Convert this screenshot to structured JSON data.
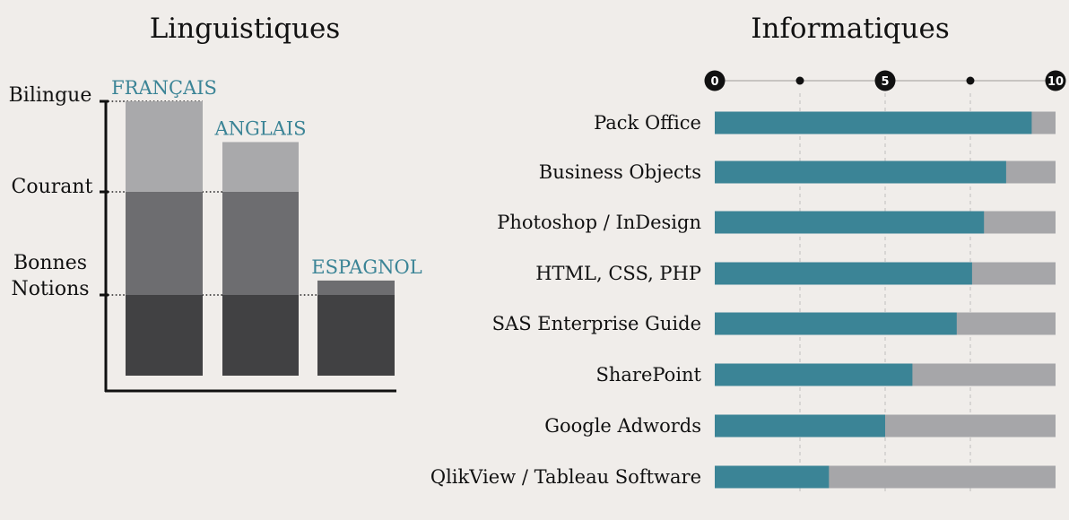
{
  "colors": {
    "background": "#f0edea",
    "lang_top": "#a9a9ab",
    "lang_mid": "#6d6d70",
    "lang_base": "#414143",
    "skill_fill": "#3b8496",
    "skill_track": "#a6a6a9",
    "accent_text": "#3b8496",
    "ink": "#111111"
  },
  "chart_data": [
    {
      "type": "bar",
      "title": "Linguistiques",
      "levels": [
        "Bonnes Notions",
        "Courant",
        "Bilingue"
      ],
      "level_labels": [
        {
          "lines": [
            "Bonnes",
            "Notions"
          ]
        },
        {
          "lines": [
            "Courant"
          ]
        },
        {
          "lines": [
            "Bilingue"
          ]
        }
      ],
      "categories": [
        "FRANÇAIS",
        "ANGLAIS",
        "ESPAGNOL"
      ],
      "values": [
        3,
        2.55,
        1.14
      ],
      "ylim": [
        0,
        3
      ]
    },
    {
      "type": "bar",
      "orientation": "horizontal",
      "title": "Informatiques",
      "xlim": [
        0,
        10
      ],
      "ticks": [
        0,
        2.5,
        5,
        7.5,
        10
      ],
      "tick_labels": [
        "0",
        "",
        "5",
        "",
        "10"
      ],
      "categories": [
        "Pack Office",
        "Business Objects",
        "Photoshop / InDesign",
        "HTML, CSS, PHP",
        "SAS Enterprise Guide",
        "SharePoint",
        "Google Adwords",
        "QlikView / Tableau Software"
      ],
      "values": [
        9.3,
        8.55,
        7.9,
        7.55,
        7.1,
        5.8,
        5.0,
        3.35
      ]
    }
  ]
}
